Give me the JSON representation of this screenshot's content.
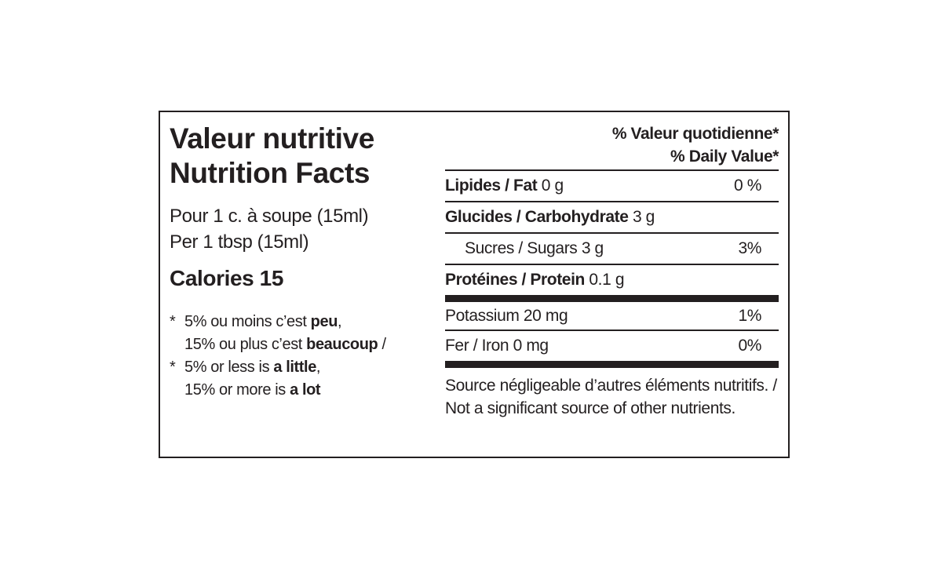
{
  "title_fr": "Valeur nutritive",
  "title_en": "Nutrition Facts",
  "serving_fr": "Pour 1 c. à soupe (15ml)",
  "serving_en": "Per 1 tbsp (15ml)",
  "calories": "Calories 15",
  "footnote": [
    {
      "marker": "*",
      "parts": [
        "5% ou moins c’est ",
        "peu",
        ","
      ]
    },
    {
      "parts": [
        "15% ou plus c’est ",
        "beaucoup",
        " /"
      ]
    },
    {
      "marker": "*",
      "parts": [
        "5% or less is ",
        "a little",
        ","
      ]
    },
    {
      "parts": [
        "15% or more is ",
        "a lot"
      ]
    }
  ],
  "header": {
    "dv_fr": "% Valeur quotidienne",
    "dv_fr_marker": "*",
    "dv_en": "% Daily Value",
    "dv_en_marker": "*"
  },
  "rows": [
    {
      "label": "Lipides / Fat",
      "amount": "0 g",
      "dv": "0 %"
    },
    {
      "label": "Glucides / Carbohydrate",
      "amount": "3 g"
    },
    {
      "label": "Sucres / Sugars 3 g",
      "dv": "3%"
    },
    {
      "label": "Protéines / Protein",
      "amount": "0.1 g"
    },
    {
      "label": "Potassium 20 mg",
      "dv": "1%"
    },
    {
      "label": "Fer / Iron 0 mg",
      "dv": "0%"
    }
  ],
  "note": "Source négligeable d’autres éléments nutritifs. / Not a significant source of other nutrients."
}
